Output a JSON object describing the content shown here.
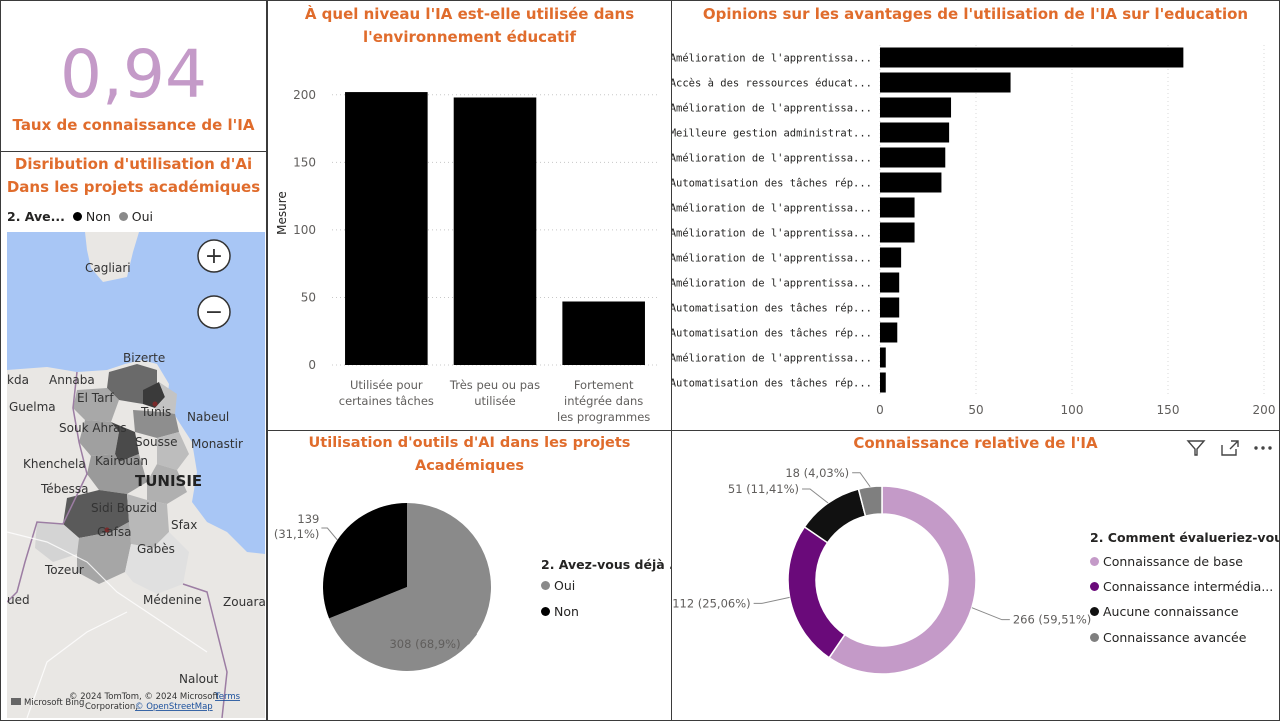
{
  "kpi": {
    "value": "0,94",
    "label": "Taux de connaissance de l'IA",
    "color": "#c49ac8"
  },
  "map_panel": {
    "title_line1": "Disribution d'utilisation d'Ai",
    "title_line2": "Dans les projets académiques",
    "legend_title": "2. Ave...",
    "legend_items": [
      {
        "label": "Non",
        "color": "#000000"
      },
      {
        "label": "Oui",
        "color": "#8a8a8a"
      }
    ],
    "places": [
      "Cagliari",
      "Bizerte",
      "Annaba",
      "kda",
      "El Tarf",
      "Tunis",
      "Nabeul",
      "Guelma",
      "Souk Ahras",
      "Monastir",
      "Sousse",
      "Khenchela",
      "Kairouan",
      "Tébessa",
      "TUNISIE",
      "Sidi Bouzid",
      "Sfax",
      "Gafsa",
      "Gabès",
      "Tozeur",
      "Médenine",
      "ued",
      "Zouara",
      "Nalout"
    ],
    "zoom_in_label": "+",
    "zoom_out_label": "−",
    "attribution_brand": "Microsoft Bing",
    "attribution_text": "© 2024 TomTom, © 2024 Microsoft",
    "attribution_text2": "Corporation,",
    "attribution_osm": "© OpenStreetMap",
    "attribution_terms": "Terms"
  },
  "chart_data": [
    {
      "id": "niveau",
      "type": "bar",
      "title_line1": "À quel niveau l'IA est-elle utilisée dans",
      "title_line2": "l'environnement éducatif",
      "ylabel": "Mesure",
      "ylim": [
        0,
        225
      ],
      "yticks": [
        "0",
        "50",
        "100",
        "150",
        "200"
      ],
      "categories": [
        [
          "Utilisée pour",
          "certaines tâches"
        ],
        [
          "Très peu ou pas",
          "utilisée"
        ],
        [
          "Fortement",
          "intégrée dans",
          "les programmes"
        ]
      ],
      "values": [
        202,
        198,
        47
      ],
      "color": "#000000"
    },
    {
      "id": "opinions",
      "type": "bar",
      "orientation": "horizontal",
      "title": "Opinions sur les avantages de l'utilisation de l'IA sur l'education",
      "xlim": [
        0,
        200
      ],
      "xticks": [
        "0",
        "50",
        "100",
        "150",
        "200"
      ],
      "categories": [
        "Amélioration de l'apprentissa...",
        "Accès à des ressources éducat...",
        "Amélioration de l'apprentissa...",
        "Meilleure gestion administrat...",
        "Amélioration de l'apprentissa...",
        "Automatisation des tâches rép...",
        "Amélioration de l'apprentissa...",
        "Amélioration de l'apprentissa...",
        "Amélioration de l'apprentissa...",
        "Amélioration de l'apprentissa...",
        "Automatisation des tâches rép...",
        "Automatisation des tâches rép...",
        "Amélioration de l'apprentissa...",
        "Automatisation des tâches rép..."
      ],
      "values": [
        158,
        68,
        37,
        36,
        34,
        32,
        18,
        18,
        11,
        10,
        10,
        9,
        3,
        3
      ],
      "color": "#000000"
    },
    {
      "id": "outils",
      "type": "pie",
      "title": "Utilisation d'outils d'AI dans les projets Académiques",
      "legend_title": "2. Avez-vous déjà ...",
      "slices": [
        {
          "name": "Oui",
          "value": 308,
          "percent": "68,9%",
          "label": "308 (68,9%)",
          "color": "#8a8a8a"
        },
        {
          "name": "Non",
          "value": 139,
          "percent": "31,1%",
          "label_line1": "139",
          "label_line2": "(31,1%)",
          "color": "#000000"
        }
      ]
    },
    {
      "id": "connaissance",
      "type": "pie",
      "style": "donut",
      "title": "Connaissance relative de l'IA",
      "legend_title": "2. Comment évalueriez-vou...",
      "slices": [
        {
          "name": "Connaissance de base",
          "value": 266,
          "label": "266 (59,51%)",
          "color": "#c49ac8"
        },
        {
          "name": "Connaissance intermédia...",
          "value": 112,
          "label": "112 (25,06%)",
          "color": "#6a0a7a"
        },
        {
          "name": "Aucune connaissance",
          "value": 51,
          "label": "51 (11,41%)",
          "color": "#111111"
        },
        {
          "name": "Connaissance avancée",
          "value": 18,
          "label": "18 (4,03%)",
          "color": "#7f7f7f"
        }
      ]
    }
  ]
}
